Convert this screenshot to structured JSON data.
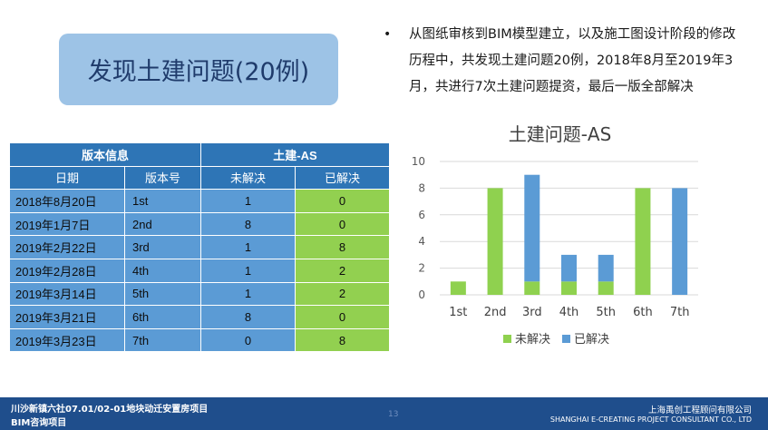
{
  "title": "发现土建问题(20例)",
  "bullet": {
    "marker": "•",
    "text": "从图纸审核到BIM模型建立，以及施工图设计阶段的修改历程中，共发现土建问题20例，2018年8月至2019年3月，共进行7次土建问题提资，最后一版全部解决"
  },
  "table": {
    "group_headers": [
      "版本信息",
      "土建-AS"
    ],
    "col_headers": [
      "日期",
      "版本号",
      "未解决",
      "已解决"
    ],
    "rows": [
      [
        "2018年8月20日",
        "1st",
        "1",
        "0"
      ],
      [
        "2019年1月7日",
        "2nd",
        "8",
        "0"
      ],
      [
        "2019年2月22日",
        "3rd",
        "1",
        "8"
      ],
      [
        "2019年2月28日",
        "4th",
        "1",
        "2"
      ],
      [
        "2019年3月14日",
        "5th",
        "1",
        "2"
      ],
      [
        "2019年3月21日",
        "6th",
        "8",
        "0"
      ],
      [
        "2019年3月23日",
        "7th",
        "0",
        "8"
      ]
    ]
  },
  "chart_data": {
    "type": "bar",
    "stacked": true,
    "title": "土建问题-AS",
    "categories": [
      "1st",
      "2nd",
      "3rd",
      "4th",
      "5th",
      "6th",
      "7th"
    ],
    "series": [
      {
        "name": "未解决",
        "values": [
          1,
          8,
          1,
          1,
          1,
          8,
          0
        ],
        "color": "#8fd14f"
      },
      {
        "name": "已解决",
        "values": [
          0,
          0,
          8,
          2,
          2,
          0,
          8
        ],
        "color": "#5b9bd5"
      }
    ],
    "ylim": [
      0,
      10
    ],
    "yticks": [
      0,
      2,
      4,
      6,
      8,
      10
    ],
    "grid": true,
    "legend": "bottom"
  },
  "footer": {
    "left_line1": "川沙新镇六社07.01/02-01地块动迁安置房项目",
    "left_line2": "BIM咨询项目",
    "page": "13",
    "right_line1": "上海禹创工程顾问有限公司",
    "right_line2": "SHANGHAI E-CREATING PROJECT CONSULTANT CO., LTD"
  }
}
